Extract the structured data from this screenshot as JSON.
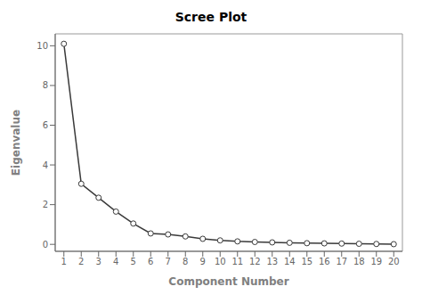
{
  "chart_data": {
    "type": "line",
    "title": "Scree Plot",
    "xlabel": "Component Number",
    "ylabel": "Eigenvalue",
    "x": [
      1,
      2,
      3,
      4,
      5,
      6,
      7,
      8,
      9,
      10,
      11,
      12,
      13,
      14,
      15,
      16,
      17,
      18,
      19,
      20
    ],
    "values": [
      10.1,
      3.05,
      2.35,
      1.65,
      1.05,
      0.55,
      0.5,
      0.4,
      0.28,
      0.2,
      0.15,
      0.12,
      0.1,
      0.08,
      0.06,
      0.05,
      0.04,
      0.03,
      0.02,
      0.01
    ],
    "color": "#3a3a3a",
    "marker": "circle",
    "xlim": [
      0.5,
      20.5
    ],
    "ylim": [
      -0.35,
      10.6
    ],
    "xticks": [
      1,
      2,
      3,
      4,
      5,
      6,
      7,
      8,
      9,
      10,
      11,
      12,
      13,
      14,
      15,
      16,
      17,
      18,
      19,
      20
    ],
    "yticks": [
      0,
      2,
      4,
      6,
      8,
      10
    ],
    "grid": false
  }
}
